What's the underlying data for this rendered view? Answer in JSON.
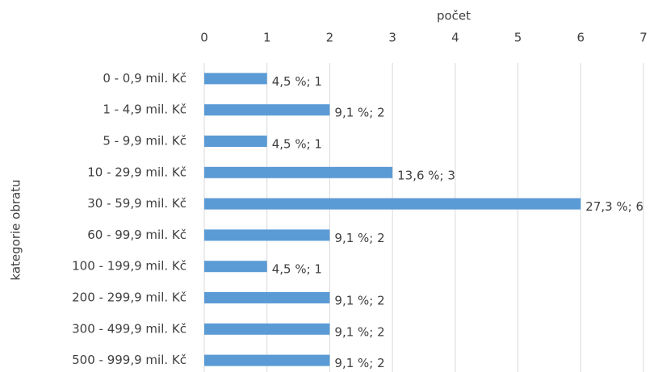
{
  "chart_data": {
    "type": "hbar",
    "xlabel": "počet",
    "ylabel": "kategorie obratu",
    "categories": [
      "0 - 0,9 mil. Kč",
      "1 - 4,9 mil. Kč",
      "5 - 9,9 mil. Kč",
      "10 - 29,9 mil. Kč",
      "30 - 59,9 mil. Kč",
      "60 - 99,9 mil. Kč",
      "100 - 199,9 mil. Kč",
      "200 - 299,9 mil. Kč",
      "300 - 499,9 mil. Kč",
      "500 - 999,9 mil. Kč"
    ],
    "values": [
      1,
      2,
      1,
      3,
      6,
      2,
      1,
      2,
      2,
      2
    ],
    "value_labels": [
      "4,5 %; 1",
      "9,1 %; 2",
      "4,5 %; 1",
      "13,6 %; 3",
      "27,3 %; 6",
      "9,1 %; 2",
      "4,5 %; 1",
      "9,1 %; 2",
      "9,1 %; 2",
      "9,1 %; 2"
    ],
    "color": "#5b9bd5",
    "xlim": [
      0,
      7
    ],
    "xticks": [
      0,
      1,
      2,
      3,
      4,
      5,
      6,
      7
    ],
    "grid": true
  }
}
